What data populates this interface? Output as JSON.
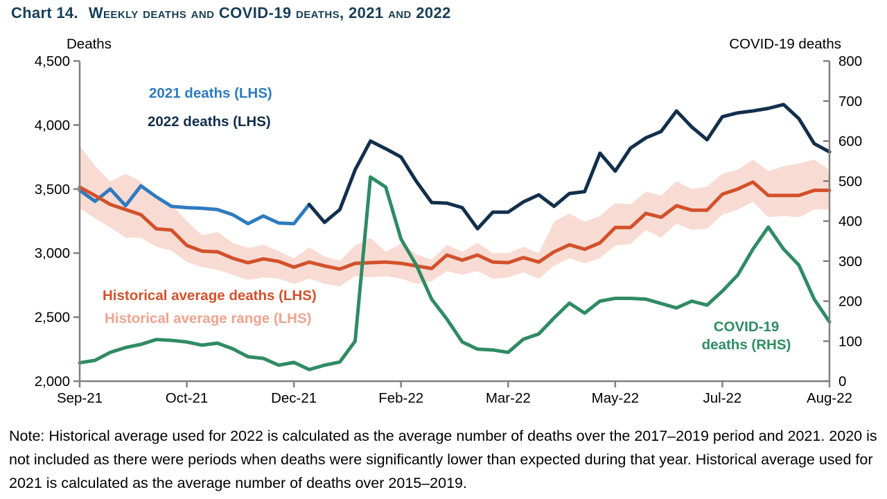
{
  "title": {
    "prefix": "Chart 14.",
    "text": "Weekly deaths and COVID-19 deaths, 2021 and 2022"
  },
  "note": "Note: Historical average used for 2022 is calculated as the average number of deaths over the 2017–2019 period and 2021. 2020 is not included as there were periods when deaths were significantly lower than expected during that year. Historical average used for 2021 is calculated as the average number of deaths over 2015–2019.",
  "colors": {
    "deaths_2021": "#2E7BC1",
    "deaths_2022": "#122F4C",
    "hist_avg": "#D2512B",
    "band": "#F8DCD3",
    "range_label": "#EFA38E",
    "covid_deaths": "#2F8B63",
    "title": "#173E56",
    "axis": "#808080",
    "text": "#000000"
  },
  "chart_data": {
    "type": "line",
    "title": "Weekly deaths and COVID-19 deaths, 2021 and 2022",
    "ylabel_left": "Deaths",
    "ylabel_right": "COVID-19 deaths",
    "ylim_left": [
      2000,
      4500
    ],
    "ylim_right": [
      0,
      800
    ],
    "yticks_left": {
      "values": [
        2000,
        2500,
        3000,
        3500,
        4000,
        4500
      ],
      "labels": [
        "2,000",
        "2,500",
        "3,000",
        "3,500",
        "4,000",
        "4,500"
      ]
    },
    "yticks_right": {
      "values": [
        0,
        100,
        200,
        300,
        400,
        500,
        600,
        700,
        800
      ],
      "labels": [
        "0",
        "100",
        "200",
        "300",
        "400",
        "500",
        "600",
        "700",
        "800"
      ]
    },
    "x_weeks": 50,
    "xticks": {
      "weeks": [
        0,
        7,
        14,
        21,
        28,
        35,
        42,
        49
      ],
      "labels": [
        "Sep-21",
        "Oct-21",
        "Dec-21",
        "Feb-22",
        "Mar-22",
        "May-22",
        "Jul-22",
        "Aug-22"
      ]
    },
    "legend": {
      "s2021": "2021 deaths (LHS)",
      "s2022": "2022 deaths (LHS)",
      "avg": "Historical average deaths (LHS)",
      "range": "Historical average range (LHS)",
      "covid_line1": "COVID-19",
      "covid_line2": "deaths (RHS)"
    },
    "grid": false,
    "series": [
      {
        "id": "deaths_2021",
        "axis": "left",
        "start": 0,
        "values": [
          3490,
          3405,
          3500,
          3370,
          3525,
          3440,
          3365,
          3355,
          3350,
          3340,
          3300,
          3230,
          3290,
          3235,
          3230,
          3380
        ]
      },
      {
        "id": "hist_avg",
        "axis": "left",
        "start": 0,
        "values": [
          3515,
          3450,
          3380,
          3340,
          3300,
          3190,
          3180,
          3060,
          3015,
          3010,
          2960,
          2925,
          2955,
          2935,
          2890,
          2930,
          2900,
          2875,
          2920,
          2925,
          2930,
          2920,
          2900,
          2880,
          2985,
          2945,
          2985,
          2930,
          2925,
          2965,
          2930,
          3010,
          3065,
          3030,
          3080,
          3200,
          3200,
          3310,
          3280,
          3370,
          3335,
          3335,
          3460,
          3500,
          3555,
          3450,
          3450,
          3450,
          3490,
          3490
        ]
      },
      {
        "id": "deaths_2022",
        "axis": "left",
        "start": 15,
        "values": [
          3380,
          3240,
          3340,
          3650,
          3875,
          3815,
          3750,
          3560,
          3395,
          3390,
          3355,
          3190,
          3320,
          3320,
          3400,
          3455,
          3365,
          3465,
          3480,
          3780,
          3640,
          3820,
          3900,
          3950,
          4110,
          3985,
          3885,
          4065,
          4095,
          4110,
          4130,
          4160,
          4050,
          3855,
          3790
        ]
      },
      {
        "id": "covid_deaths",
        "axis": "right",
        "start": 0,
        "values": [
          46,
          52,
          72,
          84,
          92,
          104,
          102,
          98,
          90,
          95,
          81,
          61,
          57,
          40,
          47,
          29,
          40,
          48,
          100,
          510,
          485,
          355,
          290,
          205,
          155,
          98,
          80,
          78,
          72,
          105,
          118,
          158,
          195,
          170,
          200,
          207,
          207,
          205,
          194,
          183,
          200,
          190,
          225,
          265,
          330,
          385,
          330,
          290,
          205,
          148
        ]
      }
    ],
    "band": {
      "id": "hist_range",
      "axis": "left",
      "start": 0,
      "upper": [
        3840,
        3680,
        3560,
        3620,
        3560,
        3420,
        3380,
        3250,
        3140,
        3165,
        3080,
        3040,
        3065,
        3015,
        2960,
        3045,
        2975,
        2940,
        3060,
        3120,
        3010,
        3075,
        2990,
        2950,
        3065,
        3010,
        3080,
        3000,
        3000,
        3050,
        3000,
        3245,
        3310,
        3245,
        3290,
        3390,
        3380,
        3480,
        3450,
        3560,
        3500,
        3520,
        3620,
        3650,
        3730,
        3640,
        3680,
        3700,
        3730,
        3650
      ],
      "lower": [
        3350,
        3270,
        3200,
        3120,
        3120,
        3050,
        3020,
        2930,
        2890,
        2870,
        2830,
        2790,
        2810,
        2800,
        2760,
        2800,
        2760,
        2740,
        2820,
        2810,
        2820,
        2800,
        2760,
        2780,
        2860,
        2830,
        2860,
        2800,
        2810,
        2850,
        2800,
        2900,
        2960,
        2920,
        2960,
        3060,
        3070,
        3180,
        3120,
        3230,
        3180,
        3190,
        3300,
        3340,
        3400,
        3280,
        3290,
        3280,
        3340,
        3340
      ]
    }
  }
}
